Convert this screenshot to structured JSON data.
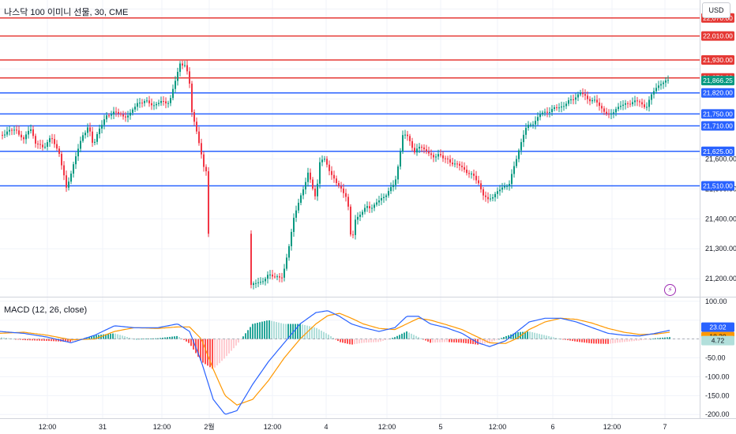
{
  "header": {
    "title": "나스닥 100 이미니 선물, 30, CME",
    "currency": "USD"
  },
  "macd_panel": {
    "title": "MACD (12, 26, close)"
  },
  "colors": {
    "up": "#089981",
    "down": "#f23645",
    "macd": "#2962ff",
    "signal": "#ff9800",
    "support": "#2962ff",
    "resistance": "#e53935",
    "axis_text": "#131722"
  },
  "icons": {
    "alert": "lightning-icon"
  },
  "chart_data": [
    {
      "type": "candlestick",
      "title": "나스닥 100 이미니 선물, 30, CME",
      "ylim": [
        21140,
        22130
      ],
      "y_ticks": [
        "21,200.00",
        "21,300.00",
        "21,400.00",
        "21,500.00",
        "21,600.00"
      ],
      "x_ticks": [
        "12:00",
        "31",
        "12:00",
        "2월",
        "12:00",
        "4",
        "12:00",
        "5",
        "12:00",
        "6",
        "12:00",
        "7"
      ],
      "last_price": 21866.25,
      "last_price_label": "21,866.25",
      "resistance_levels": [
        {
          "value": 22070,
          "label": "22,070.00"
        },
        {
          "value": 22010,
          "label": "22,010.00"
        },
        {
          "value": 21930,
          "label": "21,930.00"
        },
        {
          "value": 21870,
          "label": "21,870.00"
        }
      ],
      "support_levels": [
        {
          "value": 21820,
          "label": "21,820.00"
        },
        {
          "value": 21750,
          "label": "21,750.00"
        },
        {
          "value": 21710,
          "label": "21,710.00"
        },
        {
          "value": 21625,
          "label": "21,625.00"
        },
        {
          "value": 21510,
          "label": "21,510.00"
        }
      ],
      "path_anchors": [
        [
          0,
          21680
        ],
        [
          10,
          21690
        ],
        [
          20,
          21700
        ],
        [
          30,
          21660
        ],
        [
          38,
          21710
        ],
        [
          45,
          21650
        ],
        [
          55,
          21640
        ],
        [
          65,
          21670
        ],
        [
          75,
          21620
        ],
        [
          84,
          21500
        ],
        [
          95,
          21600
        ],
        [
          105,
          21680
        ],
        [
          112,
          21710
        ],
        [
          118,
          21640
        ],
        [
          125,
          21700
        ],
        [
          135,
          21740
        ],
        [
          145,
          21760
        ],
        [
          155,
          21740
        ],
        [
          165,
          21750
        ],
        [
          175,
          21790
        ],
        [
          185,
          21790
        ],
        [
          195,
          21780
        ],
        [
          205,
          21790
        ],
        [
          215,
          21790
        ],
        [
          222,
          21860
        ],
        [
          228,
          21920
        ],
        [
          235,
          21910
        ],
        [
          240,
          21850
        ],
        [
          243,
          21760
        ],
        [
          250,
          21680
        ],
        [
          258,
          21570
        ],
        [
          262,
          21560
        ],
        [
          266,
          21150
        ],
        [
          320,
          21180
        ],
        [
          330,
          21190
        ],
        [
          340,
          21210
        ],
        [
          350,
          21210
        ],
        [
          358,
          21200
        ],
        [
          365,
          21300
        ],
        [
          372,
          21400
        ],
        [
          380,
          21470
        ],
        [
          390,
          21550
        ],
        [
          400,
          21470
        ],
        [
          405,
          21590
        ],
        [
          410,
          21600
        ],
        [
          418,
          21560
        ],
        [
          425,
          21520
        ],
        [
          432,
          21500
        ],
        [
          440,
          21470
        ],
        [
          445,
          21310
        ],
        [
          450,
          21400
        ],
        [
          458,
          21420
        ],
        [
          465,
          21440
        ],
        [
          472,
          21440
        ],
        [
          480,
          21460
        ],
        [
          488,
          21480
        ],
        [
          495,
          21500
        ],
        [
          500,
          21520
        ],
        [
          505,
          21590
        ],
        [
          510,
          21680
        ],
        [
          518,
          21670
        ],
        [
          525,
          21620
        ],
        [
          530,
          21640
        ],
        [
          540,
          21630
        ],
        [
          548,
          21600
        ],
        [
          556,
          21620
        ],
        [
          562,
          21600
        ],
        [
          570,
          21590
        ],
        [
          580,
          21580
        ],
        [
          590,
          21560
        ],
        [
          600,
          21540
        ],
        [
          606,
          21520
        ],
        [
          612,
          21480
        ],
        [
          618,
          21460
        ],
        [
          625,
          21480
        ],
        [
          635,
          21500
        ],
        [
          645,
          21520
        ],
        [
          652,
          21580
        ],
        [
          658,
          21640
        ],
        [
          665,
          21700
        ],
        [
          675,
          21720
        ],
        [
          685,
          21750
        ],
        [
          695,
          21760
        ],
        [
          705,
          21770
        ],
        [
          715,
          21780
        ],
        [
          725,
          21800
        ],
        [
          735,
          21820
        ],
        [
          745,
          21800
        ],
        [
          755,
          21790
        ],
        [
          765,
          21760
        ],
        [
          772,
          21740
        ],
        [
          780,
          21770
        ],
        [
          790,
          21780
        ],
        [
          800,
          21790
        ],
        [
          810,
          21790
        ],
        [
          818,
          21770
        ],
        [
          825,
          21810
        ],
        [
          830,
          21840
        ],
        [
          838,
          21850
        ],
        [
          848,
          21866
        ]
      ]
    },
    {
      "type": "line",
      "title": "MACD (12, 26, close)",
      "ylim": [
        -210,
        110
      ],
      "y_ticks": [
        "100.00",
        "-50.00",
        "-100.00",
        "-150.00",
        "-200.00"
      ],
      "series": [
        {
          "name": "MACD",
          "value_label": "23.02"
        },
        {
          "name": "signal",
          "value_label": "18.30"
        },
        {
          "name": "histogram",
          "value_label": "4.72"
        }
      ],
      "macd_anchors": [
        [
          0,
          20
        ],
        [
          30,
          15
        ],
        [
          60,
          5
        ],
        [
          90,
          -10
        ],
        [
          120,
          10
        ],
        [
          145,
          35
        ],
        [
          170,
          30
        ],
        [
          200,
          30
        ],
        [
          225,
          40
        ],
        [
          240,
          20
        ],
        [
          255,
          -60
        ],
        [
          270,
          -160
        ],
        [
          285,
          -200
        ],
        [
          300,
          -190
        ],
        [
          320,
          -120
        ],
        [
          340,
          -60
        ],
        [
          360,
          -10
        ],
        [
          380,
          40
        ],
        [
          400,
          70
        ],
        [
          415,
          75
        ],
        [
          430,
          60
        ],
        [
          445,
          40
        ],
        [
          460,
          30
        ],
        [
          480,
          20
        ],
        [
          500,
          30
        ],
        [
          515,
          60
        ],
        [
          530,
          60
        ],
        [
          545,
          40
        ],
        [
          565,
          30
        ],
        [
          585,
          15
        ],
        [
          605,
          -10
        ],
        [
          620,
          -20
        ],
        [
          640,
          -5
        ],
        [
          655,
          20
        ],
        [
          670,
          45
        ],
        [
          690,
          55
        ],
        [
          710,
          55
        ],
        [
          730,
          45
        ],
        [
          750,
          30
        ],
        [
          770,
          15
        ],
        [
          790,
          10
        ],
        [
          810,
          8
        ],
        [
          830,
          15
        ],
        [
          848,
          23
        ]
      ],
      "signal_anchors": [
        [
          0,
          15
        ],
        [
          30,
          18
        ],
        [
          60,
          10
        ],
        [
          90,
          -2
        ],
        [
          120,
          0
        ],
        [
          145,
          20
        ],
        [
          170,
          30
        ],
        [
          200,
          28
        ],
        [
          225,
          32
        ],
        [
          240,
          32
        ],
        [
          255,
          0
        ],
        [
          270,
          -80
        ],
        [
          285,
          -150
        ],
        [
          300,
          -175
        ],
        [
          320,
          -160
        ],
        [
          340,
          -110
        ],
        [
          360,
          -50
        ],
        [
          380,
          0
        ],
        [
          400,
          40
        ],
        [
          415,
          62
        ],
        [
          430,
          68
        ],
        [
          445,
          55
        ],
        [
          460,
          40
        ],
        [
          480,
          28
        ],
        [
          500,
          25
        ],
        [
          515,
          40
        ],
        [
          530,
          55
        ],
        [
          545,
          50
        ],
        [
          565,
          38
        ],
        [
          585,
          25
        ],
        [
          605,
          5
        ],
        [
          620,
          -10
        ],
        [
          640,
          -12
        ],
        [
          655,
          2
        ],
        [
          670,
          25
        ],
        [
          690,
          45
        ],
        [
          710,
          55
        ],
        [
          730,
          52
        ],
        [
          750,
          42
        ],
        [
          770,
          28
        ],
        [
          790,
          18
        ],
        [
          810,
          12
        ],
        [
          830,
          13
        ],
        [
          848,
          18
        ]
      ]
    }
  ]
}
